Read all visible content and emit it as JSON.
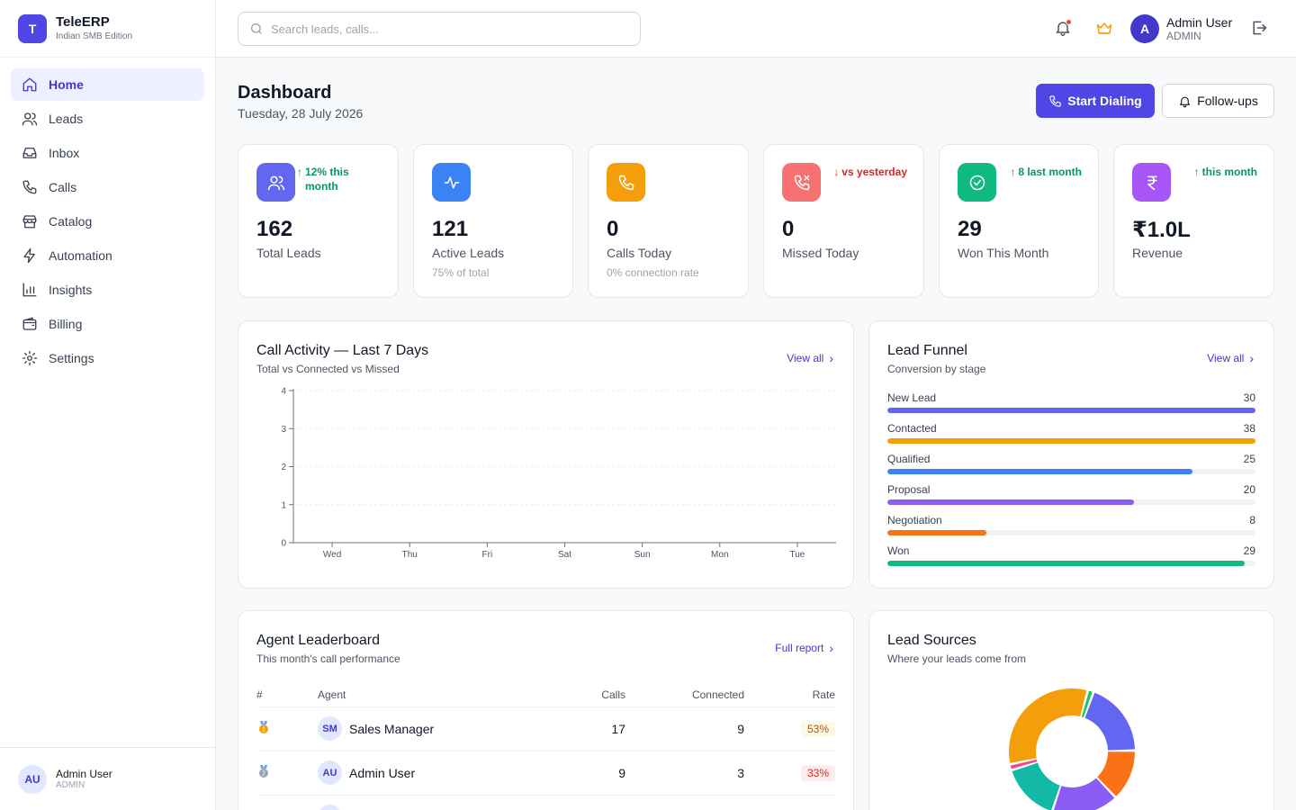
{
  "brand": {
    "logo": "T",
    "name": "TeleERP",
    "subtitle": "Indian SMB Edition"
  },
  "sidebar": {
    "items": [
      {
        "label": "Home",
        "icon": "home-icon",
        "active": true
      },
      {
        "label": "Leads",
        "icon": "users-icon"
      },
      {
        "label": "Inbox",
        "icon": "inbox-icon"
      },
      {
        "label": "Calls",
        "icon": "phone-icon"
      },
      {
        "label": "Catalog",
        "icon": "store-icon"
      },
      {
        "label": "Automation",
        "icon": "zap-icon"
      },
      {
        "label": "Insights",
        "icon": "bar-chart-icon"
      },
      {
        "label": "Billing",
        "icon": "wallet-icon"
      },
      {
        "label": "Settings",
        "icon": "gear-icon"
      }
    ],
    "user": {
      "initials": "AU",
      "name": "Admin User",
      "role": "ADMIN"
    }
  },
  "topbar": {
    "search_placeholder": "Search leads, calls...",
    "user": {
      "initials": "A",
      "name": "Admin User",
      "role": "ADMIN"
    }
  },
  "header": {
    "title": "Dashboard",
    "date": "Tuesday, 28 July 2026",
    "primary_button": "Start Dialing",
    "secondary_button": "Follow-ups"
  },
  "stats": [
    {
      "value": "162",
      "label": "Total Leads",
      "trend": "12% this month",
      "trend_dir": "up",
      "sub": "",
      "color": "#6366f1",
      "icon": "users-icon"
    },
    {
      "value": "121",
      "label": "Active Leads",
      "trend": "",
      "trend_dir": "",
      "sub": "75% of total",
      "color": "#3b82f6",
      "icon": "activity-icon"
    },
    {
      "value": "0",
      "label": "Calls Today",
      "trend": "",
      "trend_dir": "",
      "sub": "0% connection rate",
      "color": "#f59e0b",
      "icon": "phone-icon"
    },
    {
      "value": "0",
      "label": "Missed Today",
      "trend": "vs yesterday",
      "trend_dir": "down",
      "sub": "",
      "color": "#f87171",
      "icon": "phone-missed-icon"
    },
    {
      "value": "29",
      "label": "Won This Month",
      "trend": "8 last month",
      "trend_dir": "up",
      "sub": "",
      "color": "#10b981",
      "icon": "check-circle-icon"
    },
    {
      "value": "₹1.0L",
      "label": "Revenue",
      "trend": "this month",
      "trend_dir": "up",
      "sub": "",
      "color": "#a855f7",
      "icon": "rupee-icon"
    }
  ],
  "call_activity": {
    "title": "Call Activity — Last 7 Days",
    "subtitle": "Total vs Connected vs Missed",
    "link": "View all"
  },
  "chart_data": {
    "type": "line",
    "categories": [
      "Wed",
      "Thu",
      "Fri",
      "Sat",
      "Sun",
      "Mon",
      "Tue"
    ],
    "series": [],
    "ylim": [
      0,
      4
    ],
    "yticks": [
      0,
      1,
      2,
      3,
      4
    ],
    "grid": true
  },
  "funnel": {
    "title": "Lead Funnel",
    "subtitle": "Conversion by stage",
    "link": "View all",
    "stages": [
      {
        "label": "New Lead",
        "value": 30,
        "fraction": 1.0,
        "color": "#6366f1"
      },
      {
        "label": "Contacted",
        "value": 38,
        "fraction": 1.0,
        "color": "#f59e0b"
      },
      {
        "label": "Qualified",
        "value": 25,
        "fraction": 0.83,
        "color": "#3b82f6"
      },
      {
        "label": "Proposal",
        "value": 20,
        "fraction": 0.67,
        "color": "#8b5cf6"
      },
      {
        "label": "Negotiation",
        "value": 8,
        "fraction": 0.27,
        "color": "#f97316"
      },
      {
        "label": "Won",
        "value": 29,
        "fraction": 0.97,
        "color": "#10b981"
      }
    ]
  },
  "leaderboard": {
    "title": "Agent Leaderboard",
    "subtitle": "This month's call performance",
    "link": "Full report",
    "columns": [
      "#",
      "Agent",
      "Calls",
      "Connected",
      "Rate"
    ],
    "rows": [
      {
        "rank": "1",
        "medal_color": "#f59e0b",
        "initials": "SM",
        "name": "Sales Manager",
        "calls": "17",
        "connected": "9",
        "rate": "53%",
        "rate_bg": "#fef9e7",
        "rate_color": "#b45309"
      },
      {
        "rank": "2",
        "medal_color": "#9ca3af",
        "initials": "AU",
        "name": "Admin User",
        "calls": "9",
        "connected": "3",
        "rate": "33%",
        "rate_bg": "#fdecec",
        "rate_color": "#dc2626"
      }
    ]
  },
  "lead_sources": {
    "title": "Lead Sources",
    "subtitle": "Where your leads come from",
    "slices": [
      {
        "value": 19,
        "color": "#6366f1"
      },
      {
        "value": 13,
        "color": "#f97316"
      },
      {
        "value": 17,
        "color": "#8b5cf6"
      },
      {
        "value": 15,
        "color": "#14b8a6"
      },
      {
        "value": 1.5,
        "color": "#ec4899"
      },
      {
        "value": 32,
        "color": "#f59e0b"
      },
      {
        "value": 1.5,
        "color": "#22c55e"
      }
    ]
  }
}
